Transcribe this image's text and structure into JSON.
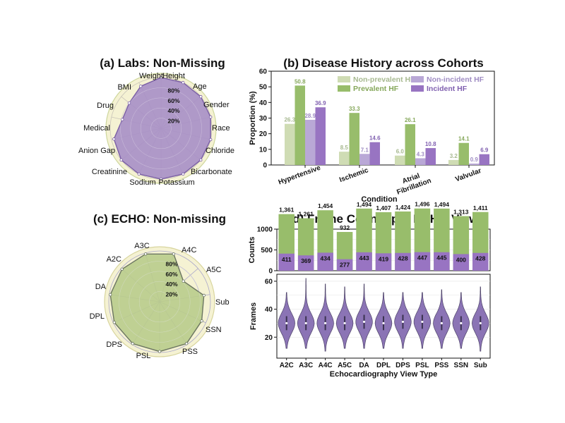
{
  "chart_data": [
    {
      "type": "radar",
      "title": "(a) Labs: Non-Missing",
      "categories": [
        "Weight",
        "Height",
        "Age",
        "Gender",
        "Race",
        "Chloride",
        "Bicarbonate",
        "Potassium",
        "Sodium",
        "Creatinine",
        "Anion Gap",
        "Medical",
        "Drug",
        "BMI"
      ],
      "values": [
        100,
        100,
        100,
        100,
        100,
        100,
        100,
        100,
        100,
        100,
        95,
        78,
        80,
        92
      ],
      "rings": [
        "20%",
        "40%",
        "60%",
        "80%"
      ],
      "ring_values": [
        20,
        40,
        60,
        80
      ],
      "rlim": [
        0,
        100
      ],
      "colors": {
        "fill": "#a78fc6",
        "line": "#7b5fa6",
        "background": "#f5f2d3",
        "outer": "#cdd69c"
      }
    },
    {
      "type": "bar",
      "title": "(b) Disease History across Cohorts",
      "categories": [
        "Hypertensive",
        "Ischemic",
        "Atrial Fibrillation",
        "Valvular"
      ],
      "series": [
        {
          "name": "Non-prevalent HF",
          "values": [
            26.3,
            8.5,
            6.0,
            3.2
          ],
          "labels": [
            "26.3",
            "8.5",
            "6.0",
            "3.2"
          ],
          "color": "#cfdcb4",
          "label_color": "#a7b990"
        },
        {
          "name": "Prevalent HF",
          "values": [
            50.8,
            33.3,
            26.1,
            14.1
          ],
          "labels": [
            "50.8",
            "33.3",
            "26.1",
            "14.1"
          ],
          "color": "#98bd6b",
          "label_color": "#86a85b"
        },
        {
          "name": "Non-incident HF",
          "values": [
            28.9,
            7.1,
            4.3,
            0.9
          ],
          "labels": [
            "28.9",
            "7.1",
            "4.3",
            "0.9"
          ],
          "color": "#b9a8d6",
          "label_color": "#9f8cc3"
        },
        {
          "name": "Incident HF",
          "values": [
            36.9,
            14.6,
            10.8,
            6.9
          ],
          "labels": [
            "36.9",
            "14.6",
            "10.8",
            "6.9"
          ],
          "color": "#9874c2",
          "label_color": "#8060b0"
        }
      ],
      "xlabel": "Condition",
      "ylabel": "Proportion (%)",
      "ylim": [
        0,
        60
      ],
      "yticks": [
        0,
        10,
        20,
        30,
        40,
        50,
        60
      ],
      "legend": "top-right",
      "grid": false
    },
    {
      "type": "radar",
      "title": "(c) ECHO: Non-missing",
      "categories": [
        "A4C",
        "A5C",
        "Sub",
        "SSN",
        "PSS",
        "PSL",
        "DPS",
        "DPL",
        "DA",
        "A2C",
        "A3C"
      ],
      "values": [
        98,
        62,
        88,
        91,
        98,
        98,
        98,
        98,
        98,
        98,
        98
      ],
      "rings": [
        "20%",
        "40%",
        "60%",
        "80%"
      ],
      "ring_values": [
        20,
        40,
        60,
        80
      ],
      "rlim": [
        0,
        100
      ],
      "colors": {
        "fill": "#b9cc8c",
        "line": "#6b7561",
        "background": "#f5f2d3",
        "outer": "#d8d59e",
        "grid": "#a9a6c9"
      }
    },
    {
      "type": "bar",
      "title": "(d) Frame Counts per ECHO View",
      "categories": [
        "A2C",
        "A3C",
        "A4C",
        "A5C",
        "DA",
        "DPL",
        "DPS",
        "PSL",
        "PSS",
        "SSN",
        "Sub"
      ],
      "series": [
        {
          "name": "total",
          "values": [
            1361,
            1261,
            1454,
            932,
            1494,
            1407,
            1424,
            1496,
            1494,
            1313,
            1411
          ],
          "labels": [
            "1,361",
            "1,261",
            "1,454",
            "932",
            "1,494",
            "1,407",
            "1,424",
            "1,496",
            "1,494",
            "1,313",
            "1,411"
          ],
          "color": "#98bd6b"
        },
        {
          "name": "subset",
          "values": [
            411,
            369,
            434,
            277,
            443,
            419,
            428,
            447,
            445,
            400,
            428
          ],
          "labels": [
            "411",
            "369",
            "434",
            "277",
            "443",
            "419",
            "428",
            "447",
            "445",
            "400",
            "428"
          ],
          "color": "#9874c2"
        }
      ],
      "ylabel": "Counts",
      "ylim": [
        0,
        1000
      ],
      "yticks": [
        0,
        500,
        1000
      ],
      "grid": true
    },
    {
      "type": "violin",
      "categories": [
        "A2C",
        "A3C",
        "A4C",
        "A5C",
        "DA",
        "DPL",
        "DPS",
        "PSL",
        "PSS",
        "SSN",
        "Sub"
      ],
      "medians": [
        30,
        30,
        30,
        30,
        31,
        30,
        31,
        31,
        30,
        30,
        30
      ],
      "ranges": [
        [
          12,
          52
        ],
        [
          12,
          62
        ],
        [
          10,
          58
        ],
        [
          12,
          56
        ],
        [
          12,
          58
        ],
        [
          12,
          52
        ],
        [
          12,
          52
        ],
        [
          12,
          52
        ],
        [
          12,
          54
        ],
        [
          12,
          52
        ],
        [
          10,
          56
        ]
      ],
      "xlabel": "Echocardiography View Type",
      "ylabel": "Frames",
      "ylim": [
        5,
        65
      ],
      "yticks": [
        20,
        40,
        60
      ],
      "color": "#8b74b5",
      "grid": true
    }
  ]
}
